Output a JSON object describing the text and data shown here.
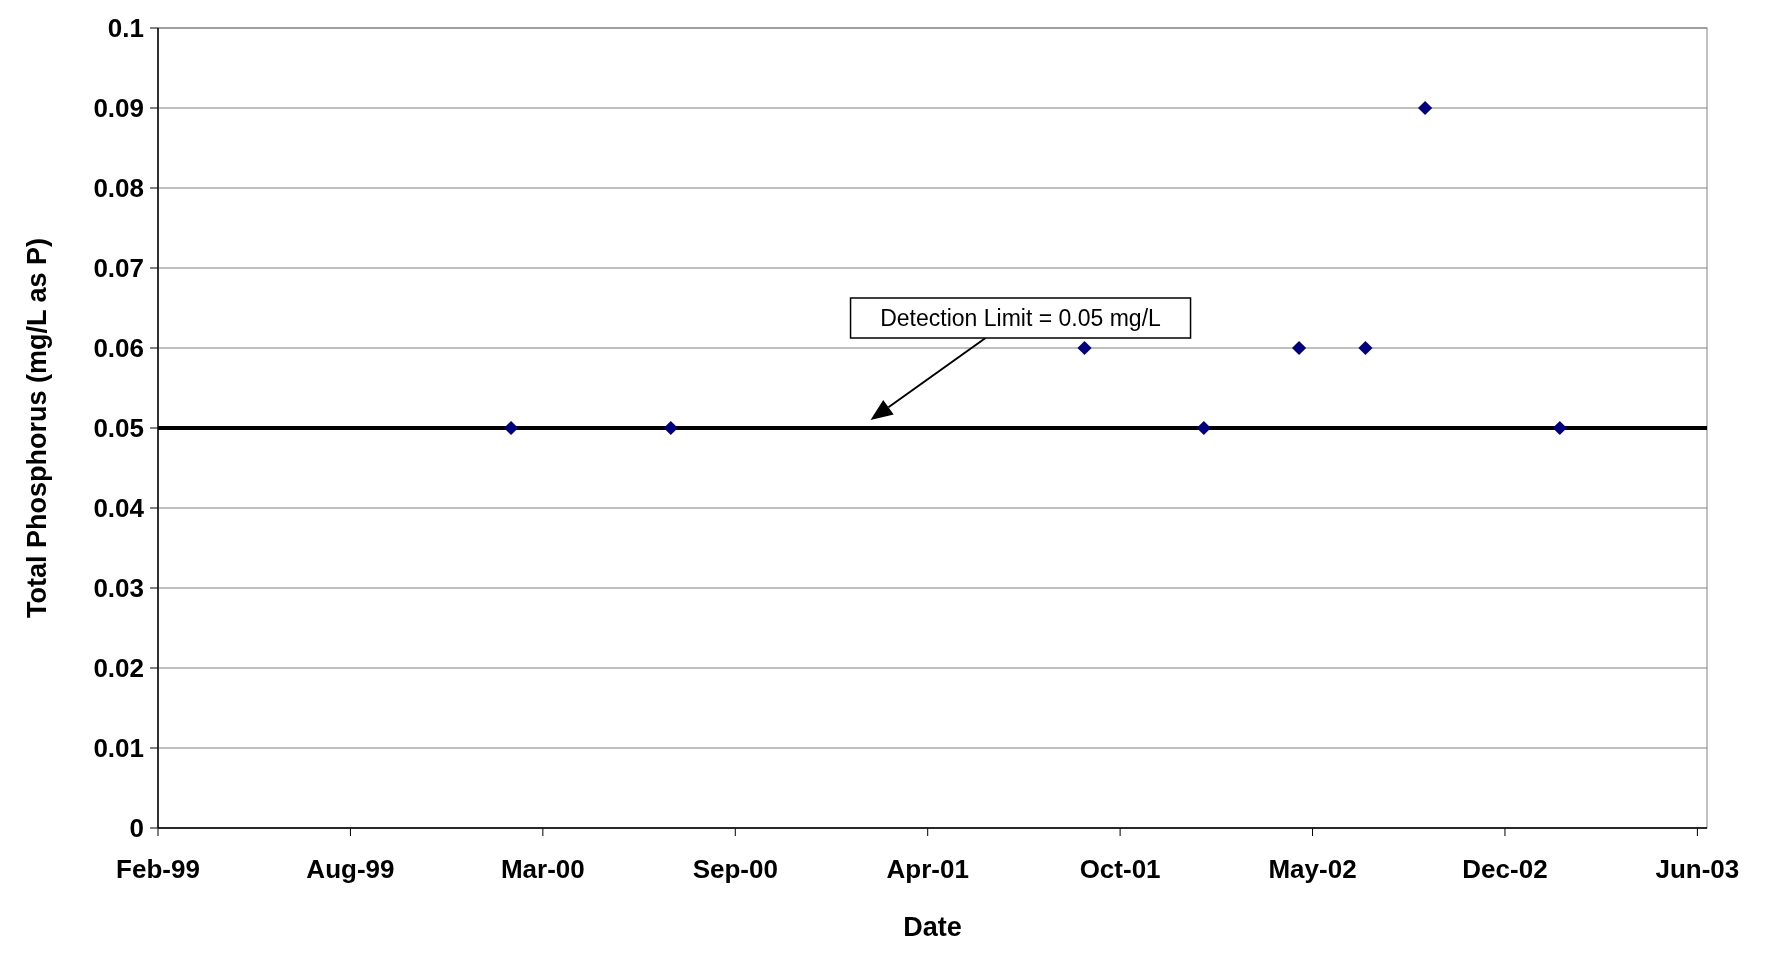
{
  "chart_data": {
    "type": "scatter",
    "xlabel": "Date",
    "ylabel": "Total Phosphorus (mg/L as P)",
    "x": [
      "2000-02-03",
      "2000-07-18",
      "2001-09-21",
      "2002-01-23",
      "2002-05-02",
      "2002-07-10",
      "2002-09-10",
      "2003-01-28"
    ],
    "series": [
      {
        "color": "#000080",
        "values": [
          0.05,
          0.05,
          0.06,
          0.05,
          0.06,
          0.06,
          0.09,
          0.05
        ]
      }
    ],
    "marker": "diamond",
    "grid": "y",
    "xlim": [
      "1999-02-01",
      "2003-06-30"
    ],
    "xticks": [
      {
        "value": "1999-02-01",
        "label": "Feb-99"
      },
      {
        "value": "1999-08-20",
        "label": "Aug-99"
      },
      {
        "value": "2000-03-07",
        "label": "Mar-00"
      },
      {
        "value": "2000-09-23",
        "label": "Sep-00"
      },
      {
        "value": "2001-04-11",
        "label": "Apr-01"
      },
      {
        "value": "2001-10-28",
        "label": "Oct-01"
      },
      {
        "value": "2002-05-16",
        "label": "May-02"
      },
      {
        "value": "2002-12-02",
        "label": "Dec-02"
      },
      {
        "value": "2003-06-20",
        "label": "Jun-03"
      }
    ],
    "ylim": [
      0,
      0.1
    ],
    "yticks": [
      0,
      0.01,
      0.02,
      0.03,
      0.04,
      0.05,
      0.06,
      0.07,
      0.08,
      0.09,
      0.1
    ],
    "ref_lines": [
      {
        "axis": "y",
        "value": 0.05,
        "color": "#000000"
      }
    ],
    "annotations": [
      "Detection Limit = 0.05 mg/L"
    ]
  }
}
